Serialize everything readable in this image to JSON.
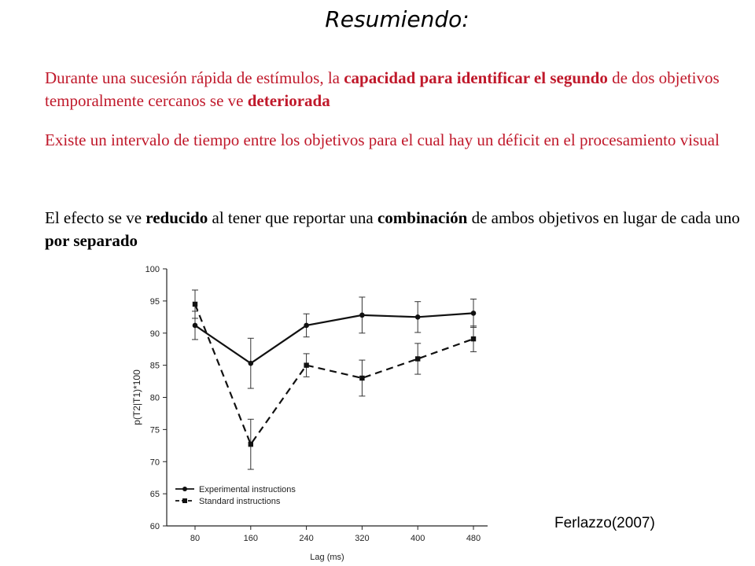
{
  "slide": {
    "title": "Resumiendo:",
    "p1": {
      "t1": "Durante una sucesión rápida de estímulos, la ",
      "b1": "capacidad para identificar el segundo",
      "t2": " de dos objetivos temporalmente cercanos se ve ",
      "b2": "deteriorada"
    },
    "p2": "Existe un intervalo de tiempo entre los objetivos para el cual hay un déficit en el procesamiento visual",
    "p3": {
      "t1": "El efecto se ve ",
      "b1": "reducido",
      "t2": " al tener que reportar una ",
      "b2": "combinación",
      "t3": " de ambos objetivos en lugar de cada uno ",
      "b3": "por separado"
    },
    "citation": "Ferlazzo(2007)"
  },
  "chart_data": {
    "type": "line",
    "x": [
      80,
      160,
      240,
      320,
      400,
      480
    ],
    "xlabel": "Lag (ms)",
    "ylabel": "p(T2|T1)*100",
    "ylim": [
      60,
      100
    ],
    "yticks": [
      60,
      65,
      70,
      75,
      80,
      85,
      90,
      95,
      100
    ],
    "legend_position": "bottom-left",
    "series": [
      {
        "name": "Experimental instructions",
        "marker": "circle",
        "line": "solid",
        "values": [
          91.2,
          85.3,
          91.2,
          92.8,
          92.5,
          93.1
        ],
        "errors": [
          2.2,
          3.9,
          1.8,
          2.8,
          2.4,
          2.2
        ]
      },
      {
        "name": "Standard instructions",
        "marker": "square",
        "line": "dashed",
        "values": [
          94.5,
          72.7,
          85.0,
          83.0,
          86.0,
          89.1
        ],
        "errors": [
          2.2,
          3.9,
          1.8,
          2.8,
          2.4,
          2.0
        ]
      }
    ]
  }
}
